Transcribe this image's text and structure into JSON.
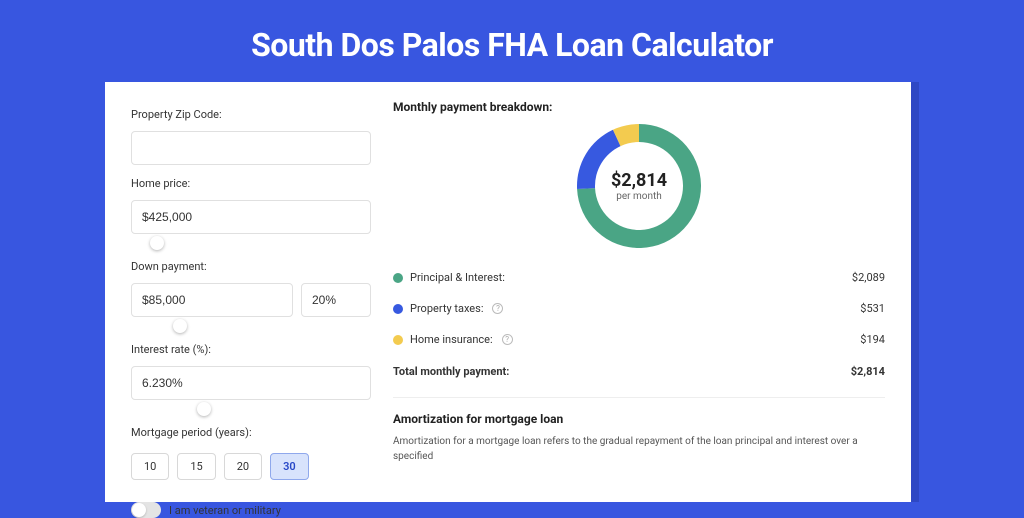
{
  "page": {
    "title": "South Dos Palos FHA Loan Calculator",
    "background_color": "#3856e0",
    "frame_color": "#2e48c4"
  },
  "form": {
    "zip": {
      "label": "Property Zip Code:",
      "value": ""
    },
    "home_price": {
      "label": "Home price:",
      "value": "$425,000",
      "slider_pct": 10
    },
    "down_payment": {
      "label": "Down payment:",
      "value": "$85,000",
      "pct_value": "20%",
      "slider_pct": 20
    },
    "interest": {
      "label": "Interest rate (%):",
      "value": "6.230%",
      "slider_pct": 30
    },
    "period": {
      "label": "Mortgage period (years):",
      "options": [
        "10",
        "15",
        "20",
        "30"
      ],
      "active_index": 3
    },
    "veteran": {
      "label": "I am veteran or military",
      "on": false
    }
  },
  "breakdown": {
    "title": "Monthly payment breakdown:",
    "center_amount": "$2,814",
    "center_sub": "per month",
    "donut": {
      "segments": [
        {
          "key": "principal_interest",
          "value": 2089,
          "color": "#4aa585"
        },
        {
          "key": "property_taxes",
          "value": 531,
          "color": "#3759e0"
        },
        {
          "key": "home_insurance",
          "value": 194,
          "color": "#f3cb4f"
        }
      ],
      "ring_width": 18,
      "size": 124
    },
    "items": [
      {
        "label": "Principal & Interest:",
        "amount": "$2,089",
        "color": "#4aa585",
        "help": false
      },
      {
        "label": "Property taxes:",
        "amount": "$531",
        "color": "#3759e0",
        "help": true
      },
      {
        "label": "Home insurance:",
        "amount": "$194",
        "color": "#f3cb4f",
        "help": true
      }
    ],
    "total": {
      "label": "Total monthly payment:",
      "amount": "$2,814"
    }
  },
  "amortization": {
    "title": "Amortization for mortgage loan",
    "text": "Amortization for a mortgage loan refers to the gradual repayment of the loan principal and interest over a specified"
  }
}
